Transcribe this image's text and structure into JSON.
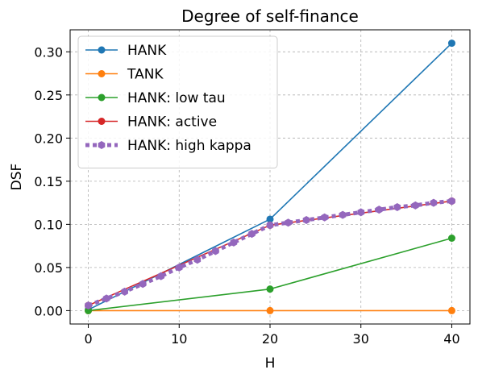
{
  "chart_data": {
    "type": "line",
    "title": "Degree of self-finance",
    "xlabel": "H",
    "ylabel": "DSF",
    "xlim": [
      -2,
      42
    ],
    "ylim": [
      -0.0155,
      0.3255
    ],
    "xticks": [
      0,
      10,
      20,
      30,
      40
    ],
    "yticks": [
      0.0,
      0.05,
      0.1,
      0.15,
      0.2,
      0.25,
      0.3
    ],
    "xtick_labels": [
      "0",
      "10",
      "20",
      "30",
      "40"
    ],
    "ytick_labels": [
      "0.00",
      "0.05",
      "0.10",
      "0.15",
      "0.20",
      "0.25",
      "0.30"
    ],
    "grid": true,
    "legend_position": "top-left",
    "series": [
      {
        "name": "HANK",
        "color": "#1f77b4",
        "style": "solid",
        "marker": "circle",
        "x": [
          0,
          20,
          40
        ],
        "y": [
          0.001,
          0.106,
          0.31
        ]
      },
      {
        "name": "TANK",
        "color": "#ff7f0e",
        "style": "solid",
        "marker": "circle",
        "x": [
          0,
          20,
          40
        ],
        "y": [
          0.0,
          0.0,
          0.0
        ]
      },
      {
        "name": "HANK: low tau",
        "color": "#2ca02c",
        "style": "solid",
        "marker": "circle",
        "x": [
          0,
          20,
          40
        ],
        "y": [
          0.0,
          0.025,
          0.084
        ]
      },
      {
        "name": "HANK: active",
        "color": "#d62728",
        "style": "solid",
        "marker": "circle",
        "x": [
          0,
          20,
          40
        ],
        "y": [
          0.006,
          0.099,
          0.127
        ]
      },
      {
        "name": "HANK: high kappa",
        "color": "#9467bd",
        "style": "dotted",
        "marker": "hexagon",
        "x": [
          0,
          2,
          4,
          6,
          8,
          10,
          12,
          14,
          16,
          18,
          20,
          22,
          24,
          26,
          28,
          30,
          32,
          34,
          36,
          38,
          40
        ],
        "y": [
          0.006,
          0.014,
          0.022,
          0.031,
          0.04,
          0.05,
          0.059,
          0.069,
          0.079,
          0.089,
          0.099,
          0.102,
          0.105,
          0.108,
          0.111,
          0.114,
          0.117,
          0.12,
          0.122,
          0.125,
          0.127
        ]
      }
    ]
  }
}
